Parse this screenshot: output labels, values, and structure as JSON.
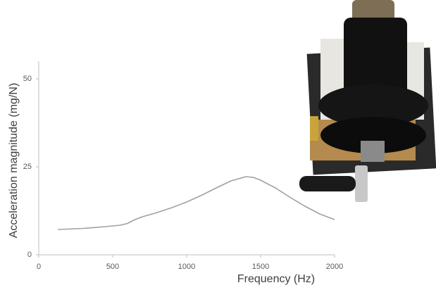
{
  "chart_data": {
    "type": "line",
    "x_label": "Frequency (Hz)",
    "y_label": "Acceleration magnitude (mg/N)",
    "x": [
      130,
      300,
      450,
      550,
      600,
      650,
      700,
      800,
      900,
      1000,
      1100,
      1200,
      1300,
      1400,
      1450,
      1500,
      1600,
      1700,
      1800,
      1900,
      2000
    ],
    "series": [
      {
        "color": "#a0a0a0",
        "values": [
          7.2,
          7.5,
          8.0,
          8.4,
          8.9,
          10.0,
          10.8,
          12.0,
          13.4,
          15.0,
          16.9,
          19.0,
          21.0,
          22.2,
          22.0,
          21.2,
          19.0,
          16.3,
          13.8,
          11.6,
          10.0
        ]
      }
    ],
    "xlim": [
      0,
      2000
    ],
    "xticks": [
      0,
      500,
      1000,
      1500,
      2000
    ],
    "ylim": [
      0,
      55
    ],
    "yticks": [
      0,
      25,
      50
    ],
    "grid": false
  }
}
